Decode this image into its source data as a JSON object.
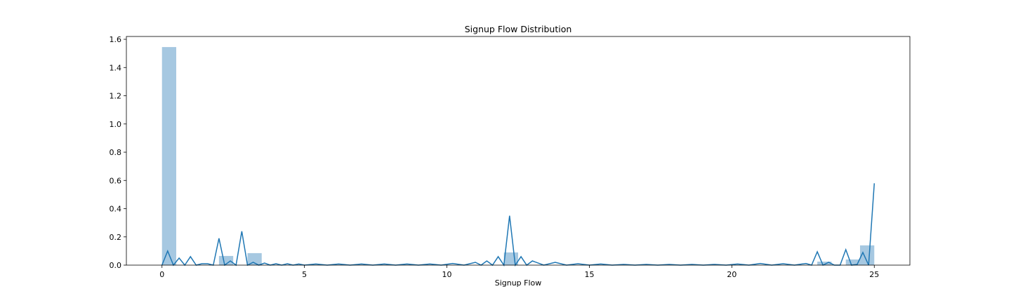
{
  "chart_data": {
    "type": "bar",
    "title": "Signup Flow Distribution",
    "xlabel": "Signup Flow",
    "ylabel": "",
    "xlim": [
      -1.25,
      26.25
    ],
    "ylim": [
      0,
      1.62
    ],
    "xticks": [
      0,
      5,
      10,
      15,
      20,
      25
    ],
    "yticks": [
      0.0,
      0.2,
      0.4,
      0.6,
      0.8,
      1.0,
      1.2,
      1.4,
      1.6
    ],
    "ytick_labels": [
      "0.0",
      "0.2",
      "0.4",
      "0.6",
      "0.8",
      "1.0",
      "1.2",
      "1.4",
      "1.6"
    ],
    "grid": false,
    "histogram": {
      "bin_width": 0.5,
      "bins": [
        {
          "x0": 0.0,
          "value": 1.545
        },
        {
          "x0": 2.0,
          "value": 0.065
        },
        {
          "x0": 3.0,
          "value": 0.085
        },
        {
          "x0": 12.0,
          "value": 0.09
        },
        {
          "x0": 23.0,
          "value": 0.025
        },
        {
          "x0": 24.0,
          "value": 0.04
        },
        {
          "x0": 24.5,
          "value": 0.14
        }
      ]
    },
    "kde_line": {
      "x": [
        0.0,
        0.2,
        0.4,
        0.6,
        0.8,
        1.0,
        1.2,
        1.4,
        1.6,
        1.8,
        2.0,
        2.2,
        2.4,
        2.6,
        2.8,
        3.0,
        3.2,
        3.4,
        3.6,
        3.8,
        4.0,
        4.2,
        4.4,
        4.6,
        4.8,
        5.0,
        5.4,
        5.8,
        6.2,
        6.6,
        7.0,
        7.4,
        7.8,
        8.2,
        8.6,
        9.0,
        9.4,
        9.8,
        10.2,
        10.6,
        11.0,
        11.2,
        11.4,
        11.6,
        11.8,
        12.0,
        12.2,
        12.4,
        12.6,
        12.8,
        13.0,
        13.4,
        13.8,
        14.2,
        14.6,
        15.0,
        15.4,
        15.8,
        16.2,
        16.6,
        17.0,
        17.4,
        17.8,
        18.2,
        18.6,
        19.0,
        19.4,
        19.8,
        20.2,
        20.6,
        21.0,
        21.4,
        21.8,
        22.2,
        22.6,
        22.8,
        23.0,
        23.2,
        23.4,
        23.6,
        23.8,
        24.0,
        24.2,
        24.4,
        24.6,
        24.8,
        25.0
      ],
      "y": [
        0.0,
        0.1,
        0.0,
        0.05,
        0.0,
        0.06,
        0.0,
        0.01,
        0.01,
        0.0,
        0.19,
        0.0,
        0.03,
        0.0,
        0.24,
        0.0,
        0.02,
        0.0,
        0.015,
        0.0,
        0.01,
        0.0,
        0.01,
        0.0,
        0.008,
        0.0,
        0.008,
        0.0,
        0.008,
        0.0,
        0.008,
        0.0,
        0.008,
        0.0,
        0.008,
        0.0,
        0.008,
        0.0,
        0.012,
        0.0,
        0.02,
        0.0,
        0.03,
        0.0,
        0.06,
        0.0,
        0.35,
        0.0,
        0.06,
        0.0,
        0.03,
        0.0,
        0.02,
        0.0,
        0.01,
        0.0,
        0.008,
        0.0,
        0.005,
        0.0,
        0.005,
        0.0,
        0.005,
        0.0,
        0.005,
        0.0,
        0.005,
        0.0,
        0.008,
        0.0,
        0.012,
        0.0,
        0.01,
        0.0,
        0.012,
        0.0,
        0.095,
        0.0,
        0.02,
        0.0,
        0.0,
        0.11,
        0.0,
        0.005,
        0.09,
        0.0,
        0.58
      ]
    },
    "colors": {
      "bar_fill": "#a6c8e1",
      "line": "#1f77b4",
      "axes": "#000000"
    }
  }
}
